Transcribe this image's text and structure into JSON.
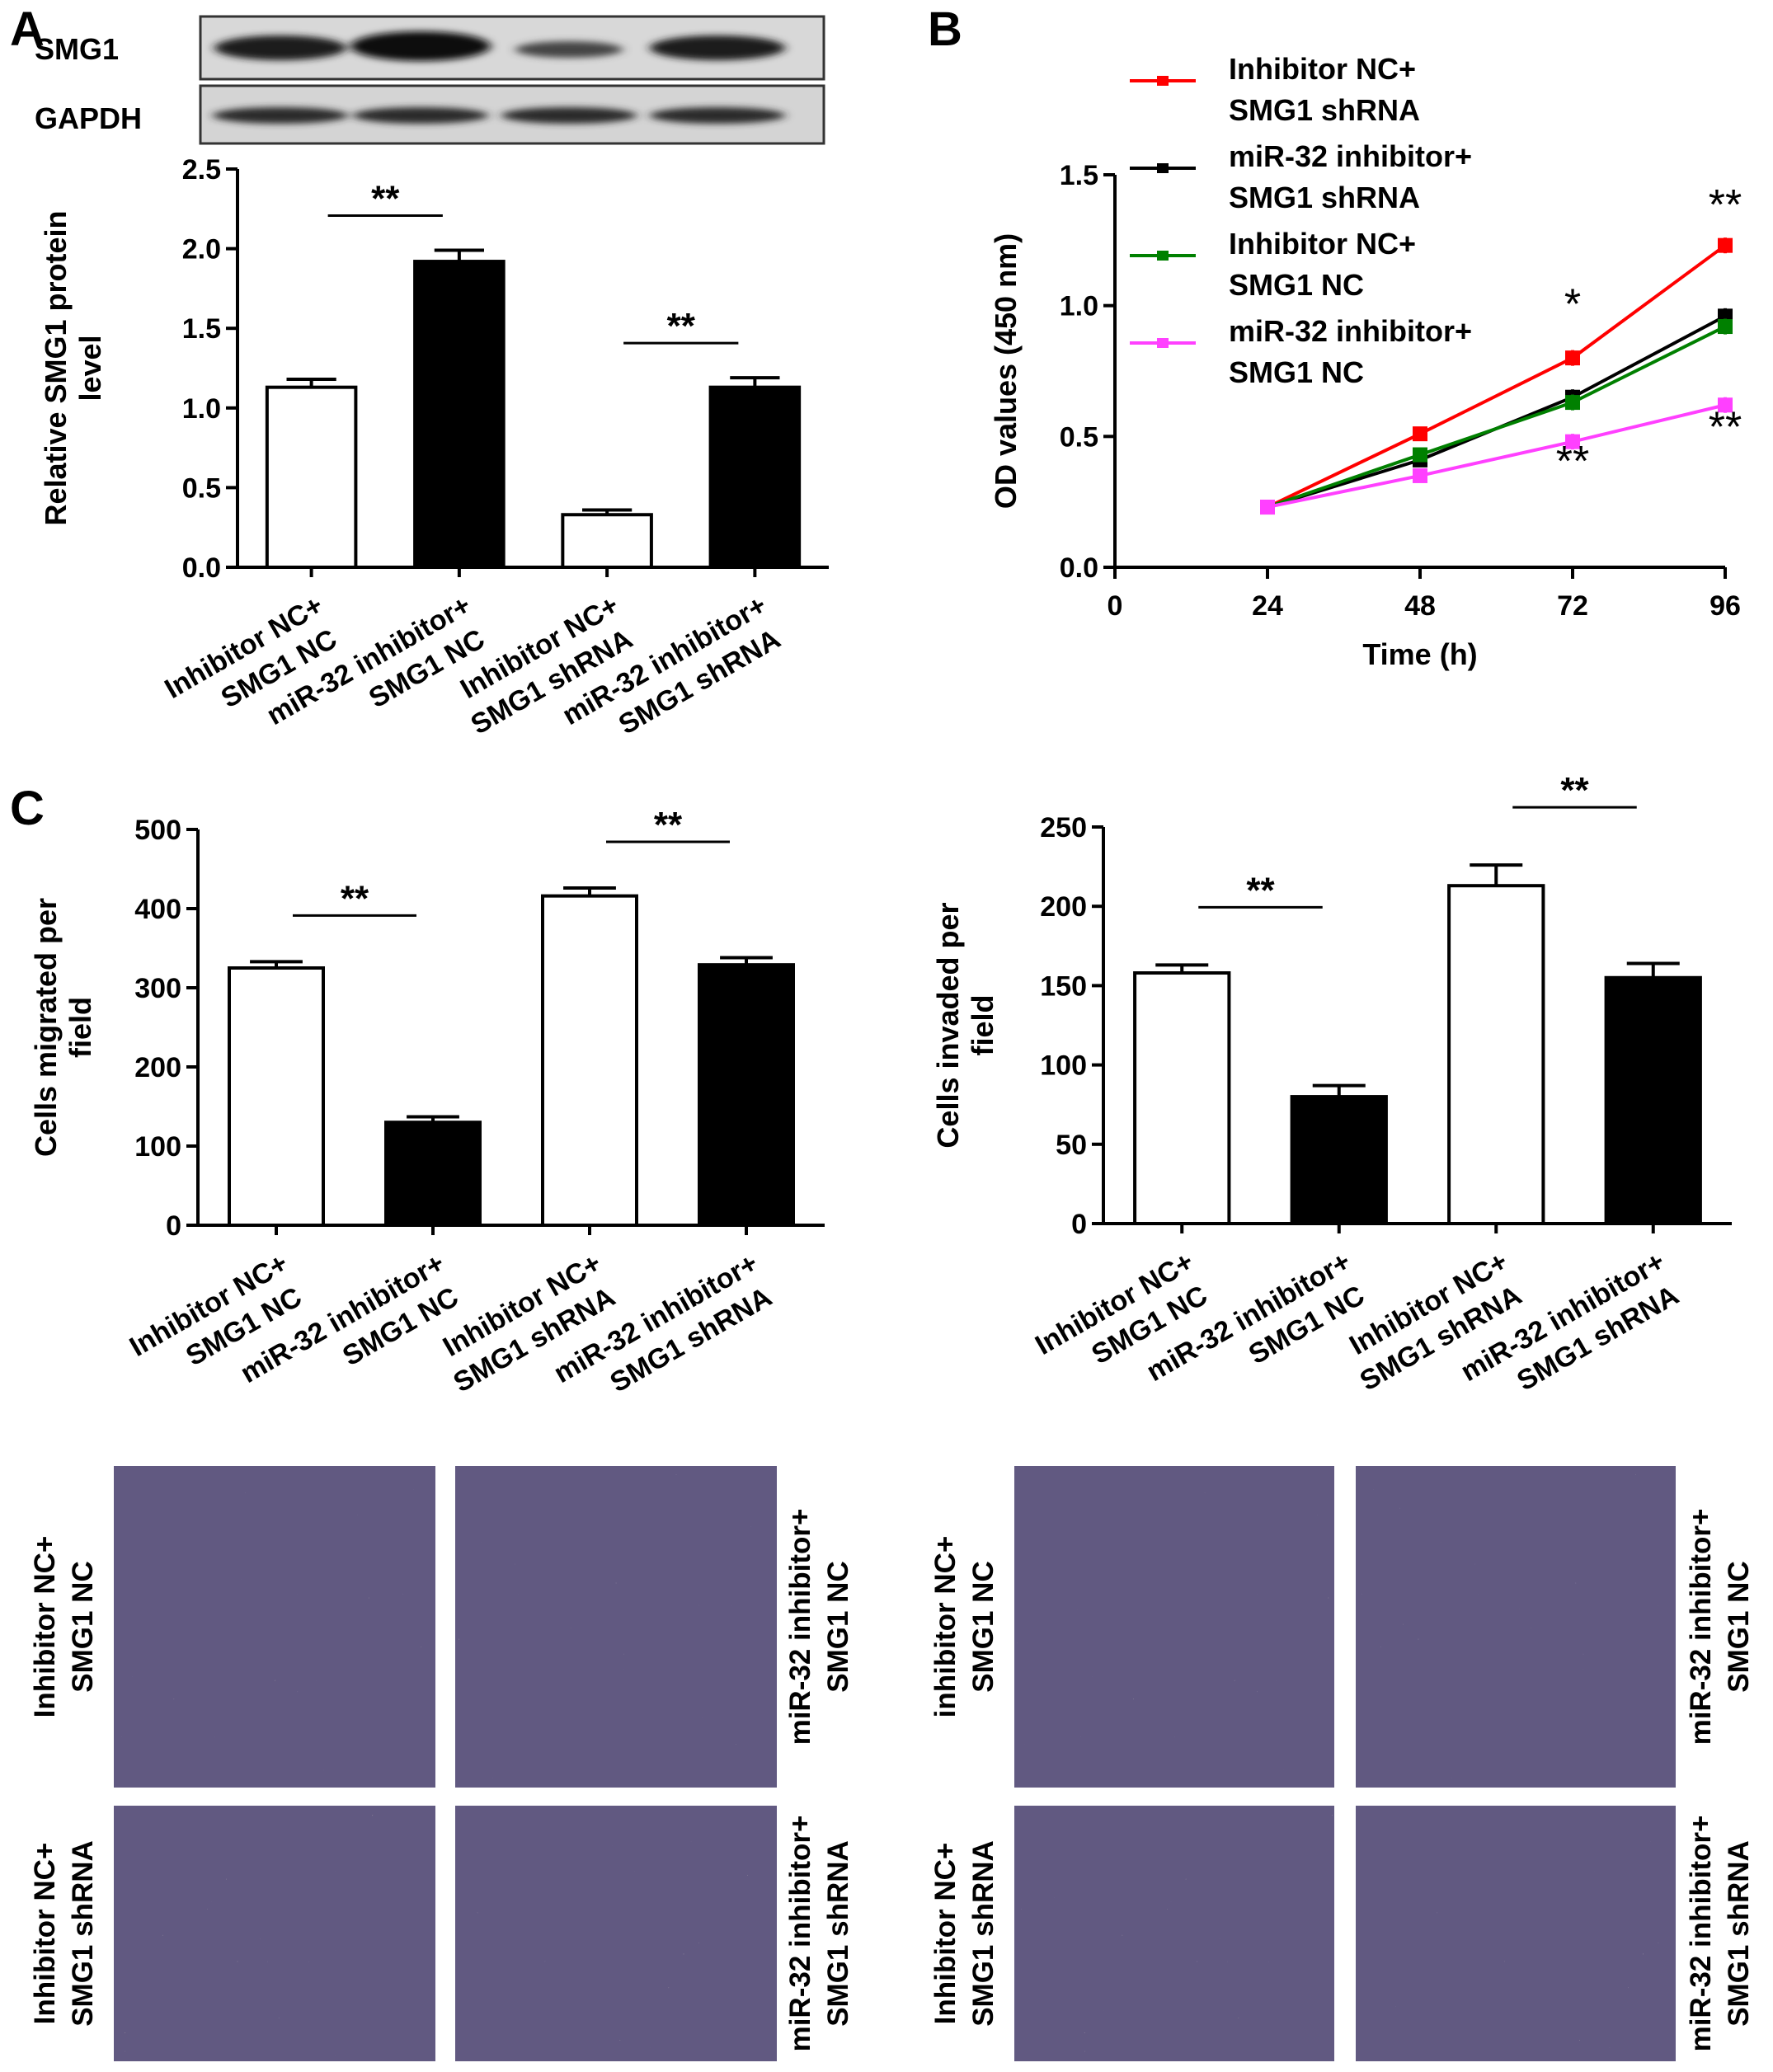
{
  "panels": {
    "A": "A",
    "B": "B",
    "C": "C"
  },
  "blot": {
    "rows": [
      "SMG1",
      "GAPDH"
    ]
  },
  "micrographs": {
    "migration": {
      "row_labels": [
        [
          "Inhibitor NC+",
          "SMG1 NC"
        ],
        [
          "Inhibitor NC+",
          "SMG1 shRNA"
        ]
      ],
      "col_labels": [
        [
          "miR-32 inhibitor+",
          "SMG1 NC"
        ],
        [
          "miR-32 inhibitor+",
          "SMG1 shRNA"
        ]
      ]
    },
    "invasion": {
      "row_labels": [
        [
          "inhibitor NC+",
          "SMG1 NC"
        ],
        [
          "Inhibitor NC+",
          "SMG1 shRNA"
        ]
      ],
      "col_labels": [
        [
          "miR-32 inhibitor+",
          "SMG1 NC"
        ],
        [
          "miR-32 inhibitor+",
          "SMG1 shRNA"
        ]
      ]
    },
    "stain_color": "#7a5aa6"
  },
  "chart_data": [
    {
      "id": "A",
      "type": "bar",
      "categories": [
        [
          "Inhibitor NC+",
          "SMG1 NC"
        ],
        [
          "miR-32 inhibitor+",
          "SMG1 NC"
        ],
        [
          "Inhibitor NC+",
          "SMG1 shRNA"
        ],
        [
          "miR-32 inhibitor+",
          "SMG1 shRNA"
        ]
      ],
      "values": [
        1.13,
        1.92,
        0.33,
        1.13
      ],
      "errors": [
        0.05,
        0.07,
        0.03,
        0.06
      ],
      "fills": [
        "#ffffff",
        "#000000",
        "#ffffff",
        "#000000"
      ],
      "ylabel": [
        "Relative SMG1 protein",
        "level"
      ],
      "ylim": [
        0,
        2.5
      ],
      "yticks": [
        "0.0",
        "0.5",
        "1.0",
        "1.5",
        "2.0",
        "2.5"
      ],
      "significance": [
        {
          "from": 0,
          "to": 1,
          "label": "**"
        },
        {
          "from": 2,
          "to": 3,
          "label": "**"
        }
      ]
    },
    {
      "id": "B",
      "type": "line",
      "x": [
        24,
        48,
        72,
        96
      ],
      "xticks": [
        "0",
        "24",
        "48",
        "72",
        "96"
      ],
      "xlabel": "Time (h)",
      "ylabel": "OD values (450 nm)",
      "xlim": [
        0,
        96
      ],
      "ylim": [
        0,
        1.5
      ],
      "yticks": [
        "0.0",
        "0.5",
        "1.0",
        "1.5"
      ],
      "series": [
        {
          "name": [
            "Inhibitor NC+",
            "SMG1 shRNA"
          ],
          "color": "#ff0000",
          "values": [
            0.23,
            0.51,
            0.8,
            1.23
          ],
          "errors": [
            0.02,
            0.02,
            0.03,
            0.03
          ]
        },
        {
          "name": [
            "miR-32 inhibitor+",
            "SMG1 shRNA"
          ],
          "color": "#000000",
          "values": [
            0.23,
            0.41,
            0.65,
            0.96
          ],
          "errors": [
            0.02,
            0.02,
            0.03,
            0.03
          ]
        },
        {
          "name": [
            "Inhibitor NC+",
            "SMG1 NC"
          ],
          "color": "#008000",
          "values": [
            0.23,
            0.43,
            0.63,
            0.92
          ],
          "errors": [
            0.02,
            0.02,
            0.03,
            0.03
          ]
        },
        {
          "name": [
            "miR-32 inhibitor+",
            "SMG1 NC"
          ],
          "color": "#ff40ff",
          "values": [
            0.23,
            0.35,
            0.48,
            0.62
          ],
          "errors": [
            0.02,
            0.02,
            0.03,
            0.03
          ]
        }
      ],
      "annotations": [
        {
          "x": 72,
          "y": 0.95,
          "label": "*"
        },
        {
          "x": 96,
          "y": 1.33,
          "label": "**"
        },
        {
          "x": 72,
          "y": 0.35,
          "label": "**"
        },
        {
          "x": 96,
          "y": 0.48,
          "label": "**"
        }
      ]
    },
    {
      "id": "C-migration",
      "type": "bar",
      "categories": [
        [
          "Inhibitor NC+",
          "SMG1 NC"
        ],
        [
          "miR-32 inhibitor+",
          "SMG1 NC"
        ],
        [
          "Inhibitor NC+",
          "SMG1 shRNA"
        ],
        [
          "miR-32 inhibitor+",
          "SMG1 shRNA"
        ]
      ],
      "values": [
        325,
        130,
        416,
        329
      ],
      "errors": [
        8,
        7,
        10,
        9
      ],
      "fills": [
        "#ffffff",
        "#000000",
        "#ffffff",
        "#000000"
      ],
      "ylabel": [
        "Cells migrated per",
        "field"
      ],
      "ylim": [
        0,
        500
      ],
      "yticks": [
        "0",
        "100",
        "200",
        "300",
        "400",
        "500"
      ],
      "significance": [
        {
          "from": 0,
          "to": 1,
          "label": "**"
        },
        {
          "from": 2,
          "to": 3,
          "label": "**"
        }
      ]
    },
    {
      "id": "C-invasion",
      "type": "bar",
      "categories": [
        [
          "Inhibitor NC+",
          "SMG1 NC"
        ],
        [
          "miR-32 inhibitor+",
          "SMG1 NC"
        ],
        [
          "Inhibitor NC+",
          "SMG1 shRNA"
        ],
        [
          "miR-32 inhibitor+",
          "SMG1 shRNA"
        ]
      ],
      "values": [
        158,
        80,
        213,
        155
      ],
      "errors": [
        5,
        7,
        13,
        9
      ],
      "fills": [
        "#ffffff",
        "#000000",
        "#ffffff",
        "#000000"
      ],
      "ylabel": [
        "Cells invaded per",
        "field"
      ],
      "ylim": [
        0,
        250
      ],
      "yticks": [
        "0",
        "50",
        "100",
        "150",
        "200",
        "250"
      ],
      "significance": [
        {
          "from": 0,
          "to": 1,
          "label": "**"
        },
        {
          "from": 2,
          "to": 3,
          "label": "**"
        }
      ]
    }
  ]
}
